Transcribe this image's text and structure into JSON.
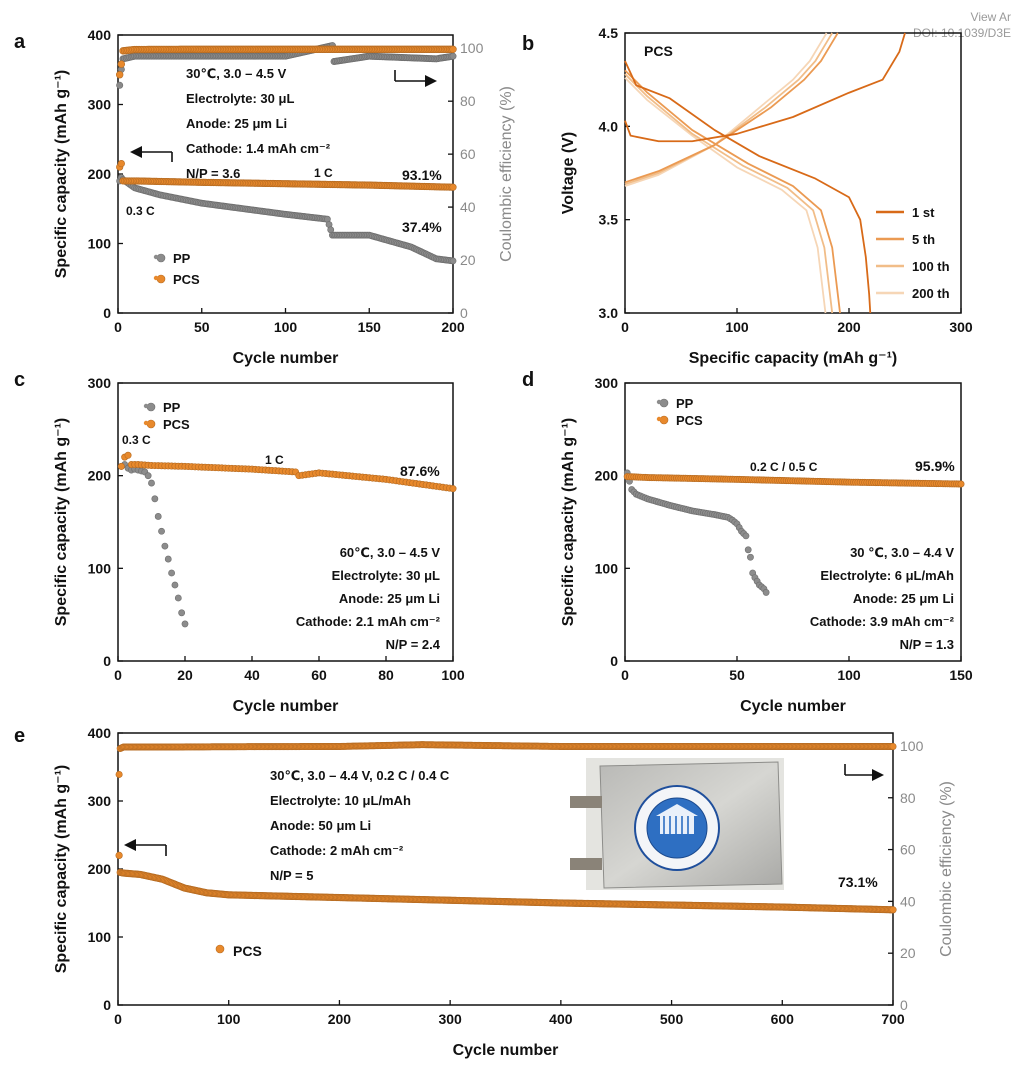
{
  "header": {
    "view_article": "View Ar",
    "doi": "DOI: 10.1039/D3E"
  },
  "colors": {
    "pp": "#8c8c8c",
    "pcs": "#e8892c",
    "ce": "#8a8a8a",
    "axis": "#111111",
    "b_1st": "#d86a18",
    "b_5th": "#eb9a52",
    "b_100th": "#f1bd88",
    "b_200th": "#f6d6b6"
  },
  "chart_data": [
    {
      "panel": "a",
      "type": "scatter",
      "xlabel": "Cycle number",
      "ylabel": "Specific capacity (mAh g⁻¹)",
      "y2label": "Coulombic efficiency (%)",
      "xlim": [
        0,
        200
      ],
      "ylim": [
        0,
        400
      ],
      "y2lim": [
        0,
        105
      ],
      "xticks": [
        0,
        50,
        100,
        150,
        200
      ],
      "yticks": [
        0,
        100,
        200,
        300,
        400
      ],
      "y2ticks": [
        0,
        20,
        40,
        60,
        80,
        100
      ],
      "series": [
        {
          "name": "PP",
          "axis": "left",
          "color": "#8c8c8c",
          "x": [
            1,
            2,
            3,
            10,
            25,
            50,
            75,
            100,
            125,
            128,
            150,
            175,
            190,
            200
          ],
          "y": [
            190,
            195,
            192,
            180,
            170,
            158,
            150,
            142,
            135,
            112,
            112,
            95,
            78,
            75
          ]
        },
        {
          "name": "PCS",
          "axis": "left",
          "color": "#e8892c",
          "x": [
            1,
            2,
            3,
            10,
            50,
            100,
            150,
            200
          ],
          "y": [
            210,
            215,
            190,
            190,
            188,
            186,
            184,
            181
          ]
        },
        {
          "name": "PP CE",
          "axis": "right",
          "color": "#8a8a8a",
          "x": [
            1,
            2,
            3,
            10,
            50,
            100,
            128,
            129,
            150,
            190,
            200
          ],
          "y": [
            86,
            92,
            96,
            97,
            97,
            97,
            101,
            95,
            97,
            96,
            97
          ]
        },
        {
          "name": "PCS CE",
          "axis": "right",
          "color": "#e8892c",
          "x": [
            1,
            2,
            3,
            10,
            50,
            100,
            150,
            200
          ],
          "y": [
            90,
            94,
            99,
            99.5,
            99.6,
            99.6,
            99.6,
            99.6
          ]
        }
      ],
      "legend": [
        "PP",
        "PCS"
      ],
      "annotations": {
        "conditions": [
          "30℃, 3.0 – 4.5 V",
          "Electrolyte: 30 μL",
          "Anode: 25 μm Li",
          "Cathode: 1.4 mAh cm⁻²",
          "N/P = 3.6"
        ],
        "rate_low": "0.3 C",
        "rate_high": "1 C",
        "retention_pcs": "93.1%",
        "retention_pp": "37.4%"
      }
    },
    {
      "panel": "b",
      "type": "line",
      "title": "PCS",
      "xlabel": "Specific capacity (mAh g⁻¹)",
      "ylabel": "Voltage (V)",
      "xlim": [
        0,
        300
      ],
      "ylim": [
        3.0,
        4.5
      ],
      "xticks": [
        0,
        100,
        200,
        300
      ],
      "yticks": [
        3.0,
        3.5,
        4.0,
        4.5
      ],
      "series": [
        {
          "name": "1 st",
          "color": "#d86a18",
          "charge": {
            "x": [
              0,
              5,
              30,
              60,
              100,
              150,
              200,
              230,
              245,
              250
            ],
            "y": [
              4.03,
              3.95,
              3.92,
              3.92,
              3.96,
              4.05,
              4.18,
              4.25,
              4.4,
              4.5
            ]
          },
          "discharge": {
            "x": [
              0,
              10,
              40,
              80,
              120,
              170,
              200,
              210,
              215,
              218,
              219
            ],
            "y": [
              4.35,
              4.22,
              4.15,
              3.98,
              3.84,
              3.72,
              3.62,
              3.5,
              3.3,
              3.1,
              3.0
            ]
          }
        },
        {
          "name": "5 th",
          "color": "#eb9a52",
          "charge": {
            "x": [
              0,
              30,
              80,
              130,
              160,
              175,
              185,
              190
            ],
            "y": [
              3.7,
              3.76,
              3.9,
              4.1,
              4.25,
              4.35,
              4.45,
              4.5
            ]
          },
          "discharge": {
            "x": [
              0,
              20,
              60,
              110,
              150,
              175,
              185,
              190,
              192
            ],
            "y": [
              4.3,
              4.18,
              3.98,
              3.8,
              3.68,
              3.55,
              3.35,
              3.1,
              3.0
            ]
          }
        },
        {
          "name": "100 th",
          "color": "#f1bd88",
          "charge": {
            "x": [
              0,
              30,
              80,
              125,
              155,
              170,
              180,
              185
            ],
            "y": [
              3.69,
              3.75,
              3.9,
              4.1,
              4.25,
              4.35,
              4.45,
              4.5
            ]
          },
          "discharge": {
            "x": [
              0,
              20,
              60,
              105,
              145,
              168,
              178,
              183,
              185
            ],
            "y": [
              4.28,
              4.16,
              3.96,
              3.79,
              3.67,
              3.55,
              3.35,
              3.1,
              3.0
            ]
          }
        },
        {
          "name": "200 th",
          "color": "#f6d6b6",
          "charge": {
            "x": [
              0,
              30,
              80,
              120,
              150,
              165,
              175,
              180
            ],
            "y": [
              3.68,
              3.74,
              3.9,
              4.1,
              4.25,
              4.35,
              4.45,
              4.5
            ]
          },
          "discharge": {
            "x": [
              0,
              20,
              60,
              100,
              140,
              162,
              172,
              177,
              179
            ],
            "y": [
              4.26,
              4.14,
              3.95,
              3.78,
              3.66,
              3.55,
              3.35,
              3.1,
              3.0
            ]
          }
        }
      ],
      "legend": [
        "1 st",
        "5 th",
        "100 th",
        "200 th"
      ]
    },
    {
      "panel": "c",
      "type": "scatter",
      "xlabel": "Cycle number",
      "ylabel": "Specific capacity (mAh g⁻¹)",
      "xlim": [
        0,
        100
      ],
      "ylim": [
        0,
        300
      ],
      "xticks": [
        0,
        20,
        40,
        60,
        80,
        100
      ],
      "yticks": [
        0,
        100,
        200,
        300
      ],
      "series": [
        {
          "name": "PP",
          "color": "#8c8c8c",
          "x": [
            1,
            2,
            3,
            4,
            5,
            6,
            7,
            8,
            9,
            10,
            11,
            12,
            13,
            14,
            15,
            16,
            17,
            18,
            19,
            20
          ],
          "y": [
            210,
            212,
            208,
            206,
            207,
            206,
            205,
            204,
            200,
            192,
            175,
            156,
            140,
            124,
            110,
            95,
            82,
            68,
            52,
            40
          ]
        },
        {
          "name": "PCS",
          "color": "#e8892c",
          "x": [
            1,
            2,
            3,
            4,
            6,
            10,
            20,
            40,
            53,
            54,
            60,
            80,
            100
          ],
          "y": [
            210,
            220,
            222,
            212,
            212,
            211,
            210,
            207,
            204,
            200,
            203,
            196,
            186
          ]
        }
      ],
      "legend": [
        "PP",
        "PCS"
      ],
      "annotations": {
        "conditions": [
          "60℃, 3.0 – 4.5 V",
          "Electrolyte: 30 μL",
          "Anode: 25 μm Li",
          "Cathode: 2.1 mAh cm⁻²",
          "N/P = 2.4"
        ],
        "rate_low": "0.3 C",
        "rate_high": "1 C",
        "retention_pcs": "87.6%"
      }
    },
    {
      "panel": "d",
      "type": "scatter",
      "xlabel": "Cycle number",
      "ylabel": "Specific capacity (mAh g⁻¹)",
      "xlim": [
        0,
        150
      ],
      "ylim": [
        0,
        300
      ],
      "xticks": [
        0,
        50,
        100,
        150
      ],
      "yticks": [
        0,
        100,
        200,
        300
      ],
      "series": [
        {
          "name": "PP",
          "color": "#8c8c8c",
          "x": [
            1,
            3,
            5,
            10,
            20,
            30,
            40,
            46,
            48,
            50,
            52,
            54,
            55,
            56,
            57,
            58,
            60,
            62,
            63
          ],
          "y": [
            203,
            185,
            180,
            175,
            168,
            162,
            158,
            155,
            152,
            148,
            140,
            135,
            120,
            112,
            95,
            90,
            82,
            78,
            74
          ]
        },
        {
          "name": "PCS",
          "color": "#e8892c",
          "x": [
            1,
            10,
            50,
            100,
            150
          ],
          "y": [
            199,
            198,
            196,
            193,
            191
          ]
        }
      ],
      "legend": [
        "PP",
        "PCS"
      ],
      "annotations": {
        "conditions": [
          "30 ℃, 3.0 – 4.4 V",
          "Electrolyte: 6 μL/mAh",
          "Anode: 25 μm Li",
          "Cathode: 3.9 mAh cm⁻²",
          "N/P = 1.3"
        ],
        "rate": "0.2 C / 0.5 C",
        "retention_pcs": "95.9%"
      }
    },
    {
      "panel": "e",
      "type": "scatter",
      "xlabel": "Cycle number",
      "ylabel": "Specific capacity (mAh g⁻¹)",
      "y2label": "Coulombic efficiency (%)",
      "xlim": [
        0,
        700
      ],
      "ylim": [
        0,
        400
      ],
      "y2lim": [
        0,
        105
      ],
      "xticks": [
        0,
        100,
        200,
        300,
        400,
        500,
        600,
        700
      ],
      "yticks": [
        0,
        100,
        200,
        300,
        400
      ],
      "y2ticks": [
        0,
        20,
        40,
        60,
        80,
        100
      ],
      "series": [
        {
          "name": "PCS",
          "axis": "left",
          "color": "#e8892c",
          "x": [
            1,
            2,
            5,
            20,
            40,
            60,
            80,
            100,
            200,
            300,
            400,
            500,
            600,
            700
          ],
          "y": [
            220,
            195,
            194,
            192,
            185,
            172,
            165,
            162,
            158,
            154,
            150,
            147,
            144,
            140
          ]
        },
        {
          "name": "PCS CE",
          "axis": "right",
          "color": "#e8892c",
          "x": [
            1,
            2,
            5,
            50,
            100,
            200,
            275,
            400,
            500,
            600,
            700
          ],
          "y": [
            89,
            99,
            99.6,
            99.6,
            99.7,
            99.8,
            100.5,
            99.8,
            99.8,
            99.8,
            99.8
          ]
        }
      ],
      "legend": [
        "PCS"
      ],
      "annotations": {
        "conditions": [
          "30℃, 3.0 – 4.4 V, 0.2 C / 0.4 C",
          "Electrolyte: 10 μL/mAh",
          "Anode: 50 μm Li",
          "Cathode: 2 mAh cm⁻²",
          "N/P =  5"
        ],
        "retention_pcs": "73.1%"
      }
    }
  ]
}
